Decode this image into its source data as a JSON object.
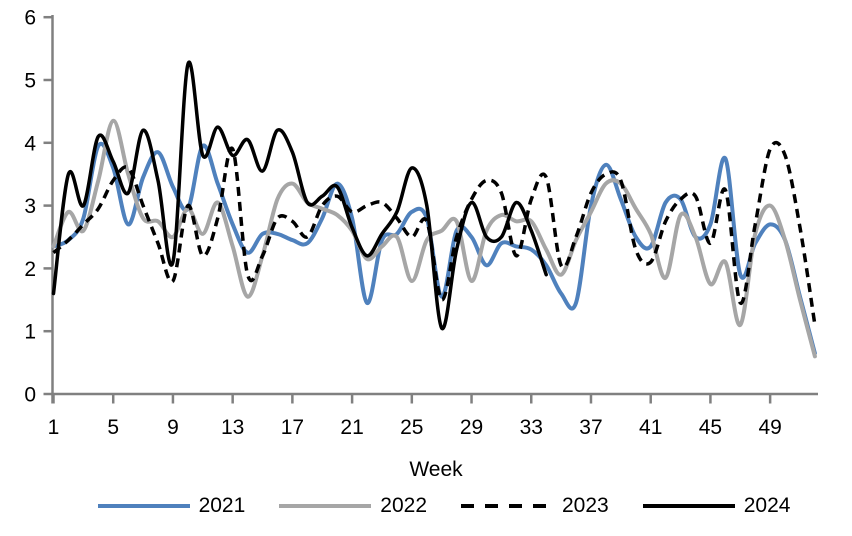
{
  "chart_data": {
    "type": "line",
    "title": "",
    "xlabel": "Week",
    "ylabel": "",
    "xlim": [
      1,
      52
    ],
    "ylim": [
      0,
      6
    ],
    "grid": false,
    "legend_position": "bottom",
    "x_ticks": [
      1,
      5,
      9,
      13,
      17,
      21,
      25,
      29,
      33,
      37,
      41,
      45,
      49
    ],
    "y_ticks": [
      0,
      1,
      2,
      3,
      4,
      5,
      6
    ],
    "weeks": [
      1,
      2,
      3,
      4,
      5,
      6,
      7,
      8,
      9,
      10,
      11,
      12,
      13,
      14,
      15,
      16,
      17,
      18,
      19,
      20,
      21,
      22,
      23,
      24,
      25,
      26,
      27,
      28,
      29,
      30,
      31,
      32,
      33,
      34,
      35,
      36,
      37,
      38,
      39,
      40,
      41,
      42,
      43,
      44,
      45,
      46,
      47,
      48,
      49,
      50,
      51,
      52
    ],
    "axis_color": "#808080",
    "text_color": "#000000",
    "series": [
      {
        "name": "2021",
        "color": "#4F81BD",
        "style": "solid",
        "values": [
          2.35,
          2.45,
          2.8,
          3.95,
          3.6,
          2.7,
          3.45,
          3.85,
          3.3,
          2.95,
          3.95,
          3.35,
          2.7,
          2.25,
          2.55,
          2.55,
          2.45,
          2.4,
          2.8,
          3.35,
          2.8,
          1.45,
          2.45,
          2.55,
          2.9,
          2.8,
          1.55,
          2.6,
          2.5,
          2.05,
          2.4,
          2.35,
          2.3,
          2.05,
          1.6,
          1.45,
          3.0,
          3.65,
          3.1,
          2.5,
          2.35,
          3.05,
          3.1,
          2.5,
          2.7,
          3.75,
          1.9,
          2.4,
          2.7,
          2.45,
          1.55,
          0.65
        ]
      },
      {
        "name": "2022",
        "color": "#A6A6A6",
        "style": "solid",
        "values": [
          2.35,
          2.9,
          2.6,
          3.4,
          4.35,
          3.5,
          2.8,
          2.75,
          2.5,
          2.95,
          2.55,
          3.05,
          2.35,
          1.55,
          2.2,
          3.1,
          3.35,
          3.05,
          2.95,
          2.85,
          2.6,
          2.15,
          2.35,
          2.5,
          1.8,
          2.45,
          2.6,
          2.75,
          1.8,
          2.6,
          2.85,
          2.75,
          2.75,
          2.3,
          1.9,
          2.45,
          2.9,
          3.35,
          3.35,
          2.95,
          2.55,
          1.85,
          2.85,
          2.5,
          1.75,
          2.1,
          1.1,
          2.55,
          3.0,
          2.45,
          1.5,
          0.6
        ]
      },
      {
        "name": "2023",
        "color": "#000000",
        "style": "dashed",
        "values": [
          2.25,
          2.45,
          2.7,
          2.95,
          3.4,
          3.6,
          3.0,
          2.4,
          1.8,
          3.0,
          2.2,
          2.8,
          3.9,
          1.9,
          2.2,
          2.8,
          2.75,
          2.5,
          3.0,
          3.15,
          2.9,
          3.0,
          3.05,
          2.8,
          2.5,
          2.75,
          1.5,
          2.5,
          3.1,
          3.4,
          3.2,
          2.2,
          3.1,
          3.45,
          2.05,
          2.5,
          3.2,
          3.5,
          3.4,
          2.3,
          2.1,
          2.75,
          3.1,
          3.15,
          2.4,
          3.25,
          1.45,
          2.7,
          3.9,
          3.8,
          2.65,
          1.1
        ]
      },
      {
        "name": "2024",
        "color": "#000000",
        "style": "solid",
        "values": [
          1.6,
          3.5,
          3.0,
          4.1,
          3.7,
          3.2,
          4.2,
          3.4,
          2.1,
          5.25,
          3.8,
          4.25,
          3.8,
          4.05,
          3.55,
          4.2,
          3.85,
          3.05,
          3.15,
          3.3,
          2.65,
          2.2,
          2.55,
          2.9,
          3.6,
          3.0,
          1.05,
          2.3,
          3.05,
          2.5,
          2.5,
          3.05,
          2.6,
          1.9
        ]
      }
    ]
  }
}
